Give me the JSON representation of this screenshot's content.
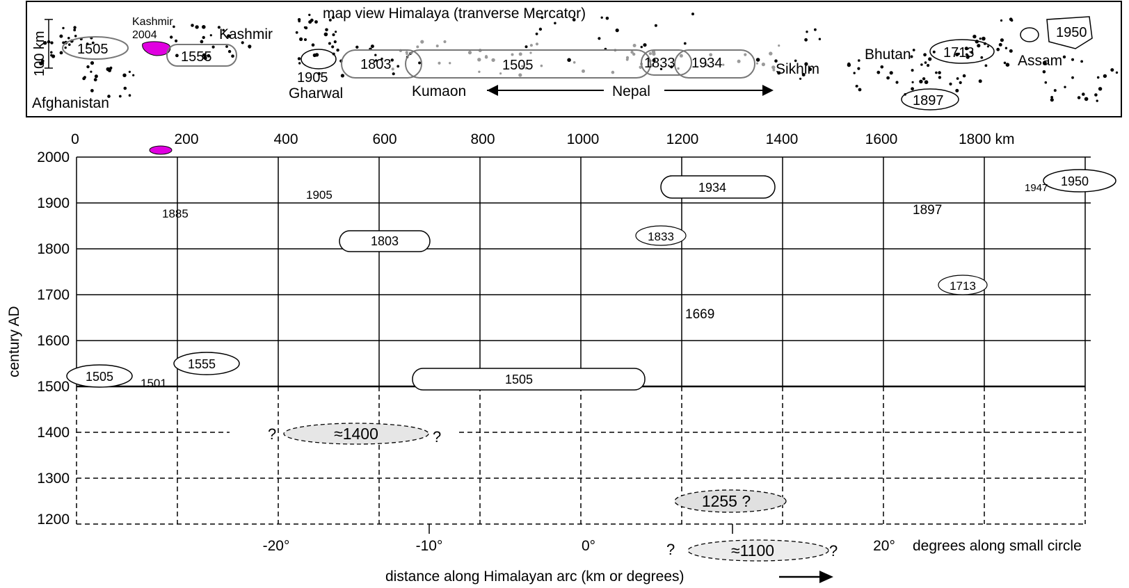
{
  "map": {
    "title": "map view Himalaya (tranverse Mercator)",
    "scale_label": "100 km",
    "regions": [
      {
        "id": "afghanistan",
        "label": "Afghanistan"
      },
      {
        "id": "kashmir",
        "label": "Kashmir"
      },
      {
        "id": "kashmir-2004-a",
        "label": "Kashmir"
      },
      {
        "id": "kashmir-2004-b",
        "label": "2004"
      },
      {
        "id": "gharwal",
        "label": "Gharwal"
      },
      {
        "id": "kumaon",
        "label": "Kumaon"
      },
      {
        "id": "nepal",
        "label": "Nepal"
      },
      {
        "id": "sikhim",
        "label": "Sikhim"
      },
      {
        "id": "bhutan",
        "label": "Bhutan"
      },
      {
        "id": "assam",
        "label": "Assam"
      }
    ],
    "ruptures": [
      {
        "id": "1505-w",
        "label": "1505"
      },
      {
        "id": "1555",
        "label": "1555"
      },
      {
        "id": "1905",
        "label": "1905"
      },
      {
        "id": "1803",
        "label": "1803"
      },
      {
        "id": "1505-c",
        "label": "1505"
      },
      {
        "id": "1833",
        "label": "1833"
      },
      {
        "id": "1934",
        "label": "1934"
      },
      {
        "id": "1713",
        "label": "1713"
      },
      {
        "id": "1897",
        "label": "1897"
      },
      {
        "id": "1950",
        "label": "1950"
      }
    ]
  },
  "timeline": {
    "top_axis_ticks": [
      "0",
      "200",
      "400",
      "600",
      "800",
      "1000",
      "1200",
      "1400",
      "1600",
      "1800 km"
    ],
    "bottom_axis_ticks": [
      "-20°",
      "-10°",
      "0°",
      "20°"
    ],
    "bottom_axis_caption": "degrees along small circle",
    "xlabel": "distance along Himalayan arc (km or degrees)",
    "ylabel": "century AD",
    "y_ticks": [
      "2000",
      "1900",
      "1800",
      "1700",
      "1600",
      "1500",
      "1400",
      "1300",
      "1200"
    ],
    "ellipse_labels": [
      {
        "id": "1505-w",
        "label": "1505"
      },
      {
        "id": "1555",
        "label": "1555"
      },
      {
        "id": "1505-c",
        "label": "1505"
      },
      {
        "id": "1803",
        "label": "1803"
      },
      {
        "id": "1833",
        "label": "1833"
      },
      {
        "id": "1934",
        "label": "1934"
      },
      {
        "id": "1713",
        "label": "1713"
      },
      {
        "id": "1950",
        "label": "1950"
      }
    ],
    "point_labels": [
      {
        "id": "1885",
        "label": "1885"
      },
      {
        "id": "1905",
        "label": "1905"
      },
      {
        "id": "1501",
        "label": "1501"
      },
      {
        "id": "1669",
        "label": "1669"
      },
      {
        "id": "1897",
        "label": "1897"
      },
      {
        "id": "1947",
        "label": "1947"
      }
    ],
    "prehistoric": [
      {
        "id": "1400",
        "label": "≈1400"
      },
      {
        "id": "1255",
        "label": "1255 ?"
      },
      {
        "id": "1100",
        "label": "≈1100"
      }
    ],
    "question_mark": "?"
  },
  "chart_data": {
    "type": "scatter",
    "xlabel": "distance along Himalayan arc (km or degrees)",
    "ylabel": "century AD",
    "x_unit": "km",
    "xlim": [
      0,
      2050
    ],
    "ylim": [
      1200,
      2000
    ],
    "colors": {
      "kashmir_2004": "#e000e0",
      "epicenter": "#000000",
      "minor_epicenter": "#9a9a9a",
      "prehistoric_fill": "#e6e6e6"
    },
    "events": [
      {
        "year": 1505,
        "label": "1505",
        "x_start": 0,
        "x_end": 115
      },
      {
        "year": 1555,
        "label": "1555",
        "x_start": 195,
        "x_end": 330
      },
      {
        "year": 1505,
        "label": "1505",
        "x_start": 685,
        "x_end": 1170
      },
      {
        "year": 1803,
        "label": "1803",
        "x_start": 530,
        "x_end": 720
      },
      {
        "year": 1833,
        "label": "1833",
        "x_start": 1130,
        "x_end": 1230
      },
      {
        "year": 1934,
        "label": "1934",
        "x_start": 1180,
        "x_end": 1420
      },
      {
        "year": 1713,
        "label": "1713",
        "x_start": 1780,
        "x_end": 1880
      },
      {
        "year": 1950,
        "label": "1950",
        "x_start": 1935,
        "x_end": 2080
      },
      {
        "year": 2005,
        "label": "",
        "x_start": 150,
        "x_end": 200
      }
    ],
    "point_events": [
      {
        "year": 1885,
        "label": "1885",
        "x": 180
      },
      {
        "year": 1905,
        "label": "1905",
        "x": 465
      },
      {
        "year": 1501,
        "label": "1501",
        "x": 170
      },
      {
        "year": 1669,
        "label": "1669",
        "x": 1240
      },
      {
        "year": 1897,
        "label": "1897",
        "x": 1720
      },
      {
        "year": 1947,
        "label": "1947",
        "x": 1950
      }
    ],
    "prehistoric_events": [
      {
        "year": 1400,
        "label": "≈1400",
        "x_start": 420,
        "x_end": 720
      },
      {
        "year": 1255,
        "label": "1255 ?",
        "x_start": 1210,
        "x_end": 1420
      },
      {
        "year": 1100,
        "label": "≈1100",
        "x_start": 1230,
        "x_end": 1470
      }
    ]
  }
}
